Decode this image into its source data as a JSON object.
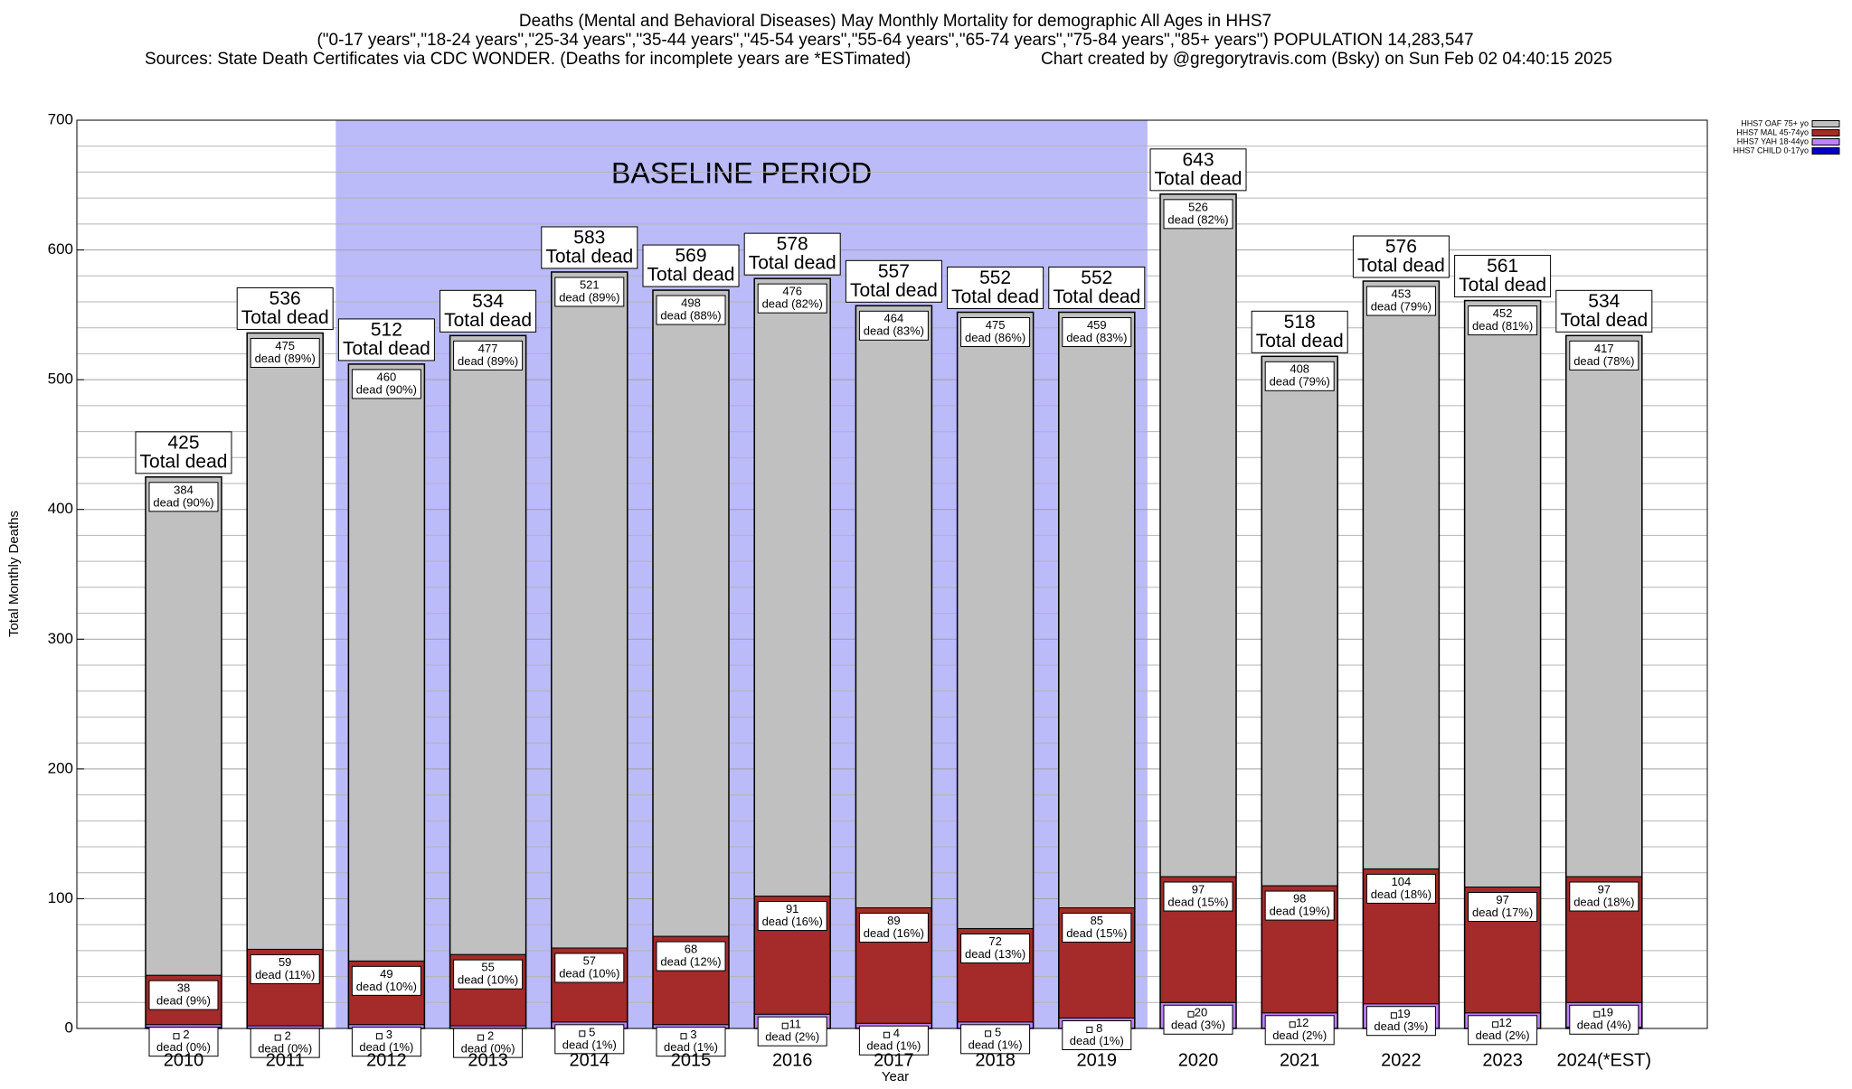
{
  "chart_data": {
    "type": "stacked_bar",
    "title": "Deaths (Mental and Behavioral Diseases) May Monthly Mortality for demographic All Ages in HHS7",
    "subtitle": "(\"0-17 years\",\"18-24 years\",\"25-34 years\",\"35-44 years\",\"45-54 years\",\"55-64 years\",\"65-74 years\",\"75-84 years\",\"85+ years\") POPULATION 14,283,547",
    "source": "Sources: State Death Certificates via CDC WONDER. (Deaths for incomplete years are *ESTimated)",
    "credit": "Chart created by @gregorytravis.com (Bsky) on Sun Feb 02 04:40:15 2025",
    "xlabel": "Year",
    "ylabel": "Total Monthly Deaths",
    "categories": [
      "2010",
      "2011",
      "2012",
      "2013",
      "2014",
      "2015",
      "2016",
      "2017",
      "2018",
      "2019",
      "2020",
      "2021",
      "2022",
      "2023",
      "2024(*EST)"
    ],
    "series": [
      {
        "name": "HHS7 CHILD 0-17yo",
        "color": "#0000c8",
        "values": [
          1,
          0,
          0,
          0,
          0,
          0,
          0,
          0,
          0,
          0,
          0,
          0,
          0,
          0,
          1
        ]
      },
      {
        "name": "HHS7 YAH 18-44yo",
        "color": "#c080ff",
        "values": [
          2,
          2,
          3,
          2,
          5,
          3,
          11,
          4,
          5,
          8,
          20,
          12,
          19,
          12,
          19
        ],
        "percent_labels": [
          "dead (0%)",
          "dead (0%)",
          "dead (1%)",
          "dead (0%)",
          "dead (1%)",
          "dead (1%)",
          "dead (2%)",
          "dead (1%)",
          "dead (1%)",
          "dead (1%)",
          "dead (3%)",
          "dead (2%)",
          "dead (3%)",
          "dead (2%)",
          "dead (4%)"
        ]
      },
      {
        "name": "HHS7 MAL 45-74yo",
        "color": "#a52a2a",
        "values": [
          38,
          59,
          49,
          55,
          57,
          68,
          91,
          89,
          72,
          85,
          97,
          98,
          104,
          97,
          97
        ],
        "percent_labels": [
          "dead (9%)",
          "dead (11%)",
          "dead (10%)",
          "dead (10%)",
          "dead (10%)",
          "dead (12%)",
          "dead (16%)",
          "dead (16%)",
          "dead (13%)",
          "dead (15%)",
          "dead (15%)",
          "dead (19%)",
          "dead (18%)",
          "dead (17%)",
          "dead (18%)"
        ]
      },
      {
        "name": "HHS7 OAF 75+ yo",
        "color": "#c0c0c0",
        "values": [
          384,
          475,
          460,
          477,
          521,
          498,
          476,
          464,
          475,
          459,
          526,
          408,
          453,
          452,
          417
        ],
        "percent_labels": [
          "dead (90%)",
          "dead (89%)",
          "dead (90%)",
          "dead (89%)",
          "dead (89%)",
          "dead (88%)",
          "dead (82%)",
          "dead (83%)",
          "dead (86%)",
          "dead (83%)",
          "dead (82%)",
          "dead (79%)",
          "dead (79%)",
          "dead (81%)",
          "dead (78%)"
        ]
      }
    ],
    "totals": [
      425,
      536,
      512,
      534,
      583,
      569,
      578,
      557,
      552,
      552,
      643,
      518,
      576,
      561,
      534
    ],
    "total_label": "Total dead",
    "baseline": {
      "label": "BASELINE PERIOD",
      "from": "2012",
      "to": "2019",
      "color": "#bbbbf9"
    },
    "ylim": [
      0,
      700
    ],
    "yticks": [
      0,
      100,
      200,
      300,
      400,
      500,
      600,
      700
    ],
    "minor_yticks": [
      20,
      40,
      60,
      80,
      120,
      140,
      160,
      180,
      220,
      240,
      260,
      280,
      320,
      340,
      360,
      380,
      420,
      440,
      460,
      480,
      520,
      540,
      560,
      580,
      620,
      640,
      660,
      680
    ],
    "grid": true,
    "legend": "top-right"
  }
}
